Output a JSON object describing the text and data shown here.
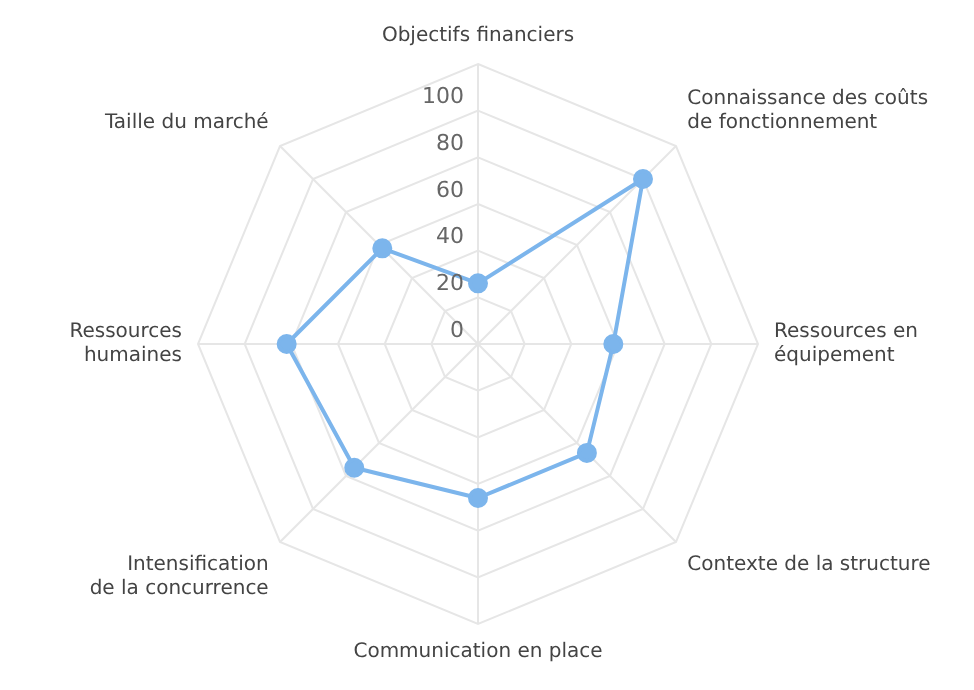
{
  "chart_data": {
    "type": "radar",
    "categories": [
      "Objectifs financiers",
      "Connaissance des coûts\nde fonctionnement",
      "Ressources en\néquipement",
      "Contexte de la structure",
      "Communication en place",
      "Intensification\nde la concurrence",
      "Ressources\nhumaines",
      "Taille du marché"
    ],
    "series": [
      {
        "color": "#7cb5ec",
        "values": [
          26,
          100,
          58,
          66,
          66,
          75,
          82,
          58
        ]
      }
    ],
    "ylim": [
      0,
      120
    ],
    "yticks": [
      0,
      20,
      40,
      60,
      80,
      100
    ],
    "grid": true,
    "legend": false,
    "marker": "circle",
    "line_style": "solid"
  }
}
